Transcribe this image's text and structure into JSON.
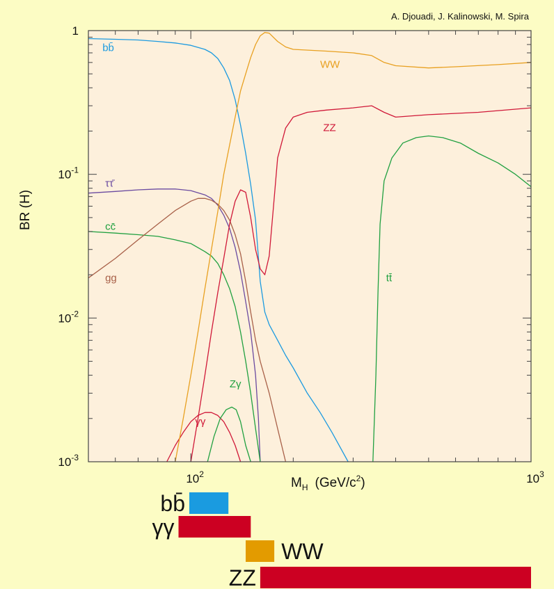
{
  "chart_data": {
    "type": "line",
    "credit": "A. Djouadi, J. Kalinowski, M. Spira",
    "ylabel": "BR (H)",
    "xlabel": "M",
    "xlabel_sub": "H",
    "xlabel_units": "(GeV/c",
    "xlabel_units_sup": "2",
    "xlabel_units_end": ")",
    "xscale": "log",
    "yscale": "log",
    "xlim": [
      50,
      1000
    ],
    "ylim": [
      0.001,
      1
    ],
    "x_ticks": [
      {
        "value": 100,
        "base": "10",
        "exp": "2"
      },
      {
        "value": 1000,
        "base": "10",
        "exp": "3"
      }
    ],
    "y_ticks": [
      {
        "value": 1,
        "base": "1",
        "exp": ""
      },
      {
        "value": 0.1,
        "base": "10",
        "exp": "-1"
      },
      {
        "value": 0.01,
        "base": "10",
        "exp": "-2"
      },
      {
        "value": 0.001,
        "base": "10",
        "exp": "-3"
      }
    ],
    "grid": false,
    "background": "#fdf0dc",
    "series": [
      {
        "name": "bb̄",
        "color": "#1b9ae0",
        "points": [
          [
            50,
            0.88
          ],
          [
            60,
            0.87
          ],
          [
            70,
            0.86
          ],
          [
            80,
            0.84
          ],
          [
            90,
            0.82
          ],
          [
            100,
            0.79
          ],
          [
            110,
            0.74
          ],
          [
            115,
            0.7
          ],
          [
            120,
            0.64
          ],
          [
            125,
            0.55
          ],
          [
            130,
            0.45
          ],
          [
            135,
            0.33
          ],
          [
            140,
            0.22
          ],
          [
            145,
            0.14
          ],
          [
            150,
            0.085
          ],
          [
            155,
            0.048
          ],
          [
            160,
            0.018
          ],
          [
            165,
            0.011
          ],
          [
            170,
            0.009
          ],
          [
            180,
            0.007
          ],
          [
            190,
            0.0055
          ],
          [
            200,
            0.0045
          ],
          [
            220,
            0.003
          ],
          [
            240,
            0.0022
          ],
          [
            260,
            0.0016
          ],
          [
            290,
            0.001
          ]
        ]
      },
      {
        "name": "ττ̄",
        "color": "#6a4aa0",
        "points": [
          [
            50,
            0.074
          ],
          [
            60,
            0.076
          ],
          [
            70,
            0.078
          ],
          [
            80,
            0.079
          ],
          [
            90,
            0.079
          ],
          [
            100,
            0.077
          ],
          [
            110,
            0.072
          ],
          [
            115,
            0.068
          ],
          [
            120,
            0.061
          ],
          [
            125,
            0.052
          ],
          [
            130,
            0.042
          ],
          [
            135,
            0.031
          ],
          [
            140,
            0.021
          ],
          [
            145,
            0.013
          ],
          [
            150,
            0.008
          ],
          [
            155,
            0.004
          ],
          [
            158,
            0.002
          ],
          [
            160,
            0.001
          ]
        ]
      },
      {
        "name": "cc̄",
        "color": "#20a040",
        "points": [
          [
            50,
            0.04
          ],
          [
            60,
            0.039
          ],
          [
            70,
            0.038
          ],
          [
            80,
            0.037
          ],
          [
            90,
            0.035
          ],
          [
            100,
            0.033
          ],
          [
            110,
            0.029
          ],
          [
            115,
            0.027
          ],
          [
            120,
            0.024
          ],
          [
            125,
            0.02
          ],
          [
            130,
            0.016
          ],
          [
            135,
            0.012
          ],
          [
            140,
            0.008
          ],
          [
            145,
            0.005
          ],
          [
            150,
            0.003
          ],
          [
            155,
            0.0017
          ],
          [
            160,
            0.001
          ]
        ]
      },
      {
        "name": "gg",
        "color": "#a86048",
        "points": [
          [
            50,
            0.019
          ],
          [
            60,
            0.026
          ],
          [
            70,
            0.035
          ],
          [
            80,
            0.045
          ],
          [
            90,
            0.056
          ],
          [
            100,
            0.065
          ],
          [
            105,
            0.068
          ],
          [
            110,
            0.068
          ],
          [
            115,
            0.066
          ],
          [
            120,
            0.062
          ],
          [
            125,
            0.056
          ],
          [
            130,
            0.048
          ],
          [
            135,
            0.038
          ],
          [
            140,
            0.028
          ],
          [
            145,
            0.018
          ],
          [
            150,
            0.011
          ],
          [
            155,
            0.007
          ],
          [
            160,
            0.005
          ],
          [
            170,
            0.003
          ],
          [
            180,
            0.0017
          ],
          [
            190,
            0.001
          ]
        ]
      },
      {
        "name": "γγ",
        "color": "#d01838",
        "points": [
          [
            85,
            0.001
          ],
          [
            90,
            0.0013
          ],
          [
            95,
            0.0016
          ],
          [
            100,
            0.0019
          ],
          [
            105,
            0.0021
          ],
          [
            110,
            0.0022
          ],
          [
            115,
            0.0022
          ],
          [
            120,
            0.0021
          ],
          [
            125,
            0.0019
          ],
          [
            130,
            0.0016
          ],
          [
            135,
            0.0013
          ],
          [
            140,
            0.001
          ]
        ]
      },
      {
        "name": "Zγ",
        "color": "#20a040",
        "points": [
          [
            112,
            0.001
          ],
          [
            117,
            0.0015
          ],
          [
            122,
            0.002
          ],
          [
            127,
            0.0023
          ],
          [
            132,
            0.0024
          ],
          [
            136,
            0.0023
          ],
          [
            140,
            0.0019
          ],
          [
            145,
            0.0013
          ],
          [
            150,
            0.001
          ]
        ]
      },
      {
        "name": "WW",
        "color": "#e8a020",
        "points": [
          [
            90,
            0.001
          ],
          [
            95,
            0.002
          ],
          [
            100,
            0.004
          ],
          [
            105,
            0.008
          ],
          [
            110,
            0.016
          ],
          [
            115,
            0.03
          ],
          [
            120,
            0.055
          ],
          [
            125,
            0.1
          ],
          [
            130,
            0.16
          ],
          [
            135,
            0.25
          ],
          [
            140,
            0.38
          ],
          [
            145,
            0.5
          ],
          [
            150,
            0.65
          ],
          [
            155,
            0.8
          ],
          [
            160,
            0.92
          ],
          [
            165,
            0.97
          ],
          [
            170,
            0.96
          ],
          [
            180,
            0.84
          ],
          [
            190,
            0.77
          ],
          [
            200,
            0.74
          ],
          [
            250,
            0.72
          ],
          [
            300,
            0.7
          ],
          [
            340,
            0.67
          ],
          [
            370,
            0.6
          ],
          [
            400,
            0.57
          ],
          [
            500,
            0.55
          ],
          [
            600,
            0.56
          ],
          [
            800,
            0.58
          ],
          [
            1000,
            0.6
          ]
        ]
      },
      {
        "name": "ZZ",
        "color": "#d01838",
        "points": [
          [
            100,
            0.001
          ],
          [
            105,
            0.002
          ],
          [
            110,
            0.004
          ],
          [
            115,
            0.008
          ],
          [
            120,
            0.015
          ],
          [
            125,
            0.026
          ],
          [
            130,
            0.045
          ],
          [
            135,
            0.065
          ],
          [
            140,
            0.078
          ],
          [
            145,
            0.075
          ],
          [
            150,
            0.05
          ],
          [
            155,
            0.03
          ],
          [
            160,
            0.022
          ],
          [
            165,
            0.02
          ],
          [
            170,
            0.027
          ],
          [
            175,
            0.06
          ],
          [
            180,
            0.13
          ],
          [
            190,
            0.21
          ],
          [
            200,
            0.25
          ],
          [
            220,
            0.27
          ],
          [
            250,
            0.28
          ],
          [
            300,
            0.29
          ],
          [
            340,
            0.3
          ],
          [
            370,
            0.27
          ],
          [
            400,
            0.25
          ],
          [
            500,
            0.26
          ],
          [
            700,
            0.27
          ],
          [
            1000,
            0.29
          ]
        ]
      },
      {
        "name": "tt̄",
        "color": "#20a040",
        "points": [
          [
            343,
            0.001
          ],
          [
            350,
            0.004
          ],
          [
            355,
            0.015
          ],
          [
            360,
            0.045
          ],
          [
            370,
            0.09
          ],
          [
            390,
            0.13
          ],
          [
            420,
            0.165
          ],
          [
            460,
            0.18
          ],
          [
            500,
            0.185
          ],
          [
            550,
            0.18
          ],
          [
            620,
            0.165
          ],
          [
            700,
            0.14
          ],
          [
            800,
            0.12
          ],
          [
            900,
            0.1
          ],
          [
            1000,
            0.082
          ]
        ]
      }
    ],
    "curve_labels": [
      {
        "text": "bb̄",
        "series": "bb̄",
        "x": 55,
        "y": 0.72
      },
      {
        "text": "WW",
        "series": "WW",
        "x": 240,
        "y": 0.55
      },
      {
        "text": "ZZ",
        "series": "ZZ",
        "x": 245,
        "y": 0.2
      },
      {
        "text": "ττ̄",
        "series": "ττ̄",
        "x": 56,
        "y": 0.082
      },
      {
        "text": "cc̄",
        "series": "cc̄",
        "x": 56,
        "y": 0.041
      },
      {
        "text": "gg",
        "series": "gg",
        "x": 56,
        "y": 0.018
      },
      {
        "text": "tt̄",
        "series": "tt̄",
        "x": 375,
        "y": 0.018
      },
      {
        "text": "γγ",
        "series": "γγ",
        "x": 103,
        "y": 0.0018
      },
      {
        "text": "Zγ",
        "series": "Zγ",
        "x": 130,
        "y": 0.0033
      }
    ],
    "ranges": [
      {
        "label": "bb̄",
        "color": "#1a9be0",
        "from": 99,
        "to": 129
      },
      {
        "label": "γγ",
        "color": "#cc0022",
        "from": 92,
        "to": 150
      },
      {
        "label": "WW",
        "color": "#e39b00",
        "from": 145,
        "to": 176,
        "label_side": "right"
      },
      {
        "label": "ZZ",
        "color": "#cc0022",
        "from": 160,
        "to": 1000
      }
    ]
  }
}
